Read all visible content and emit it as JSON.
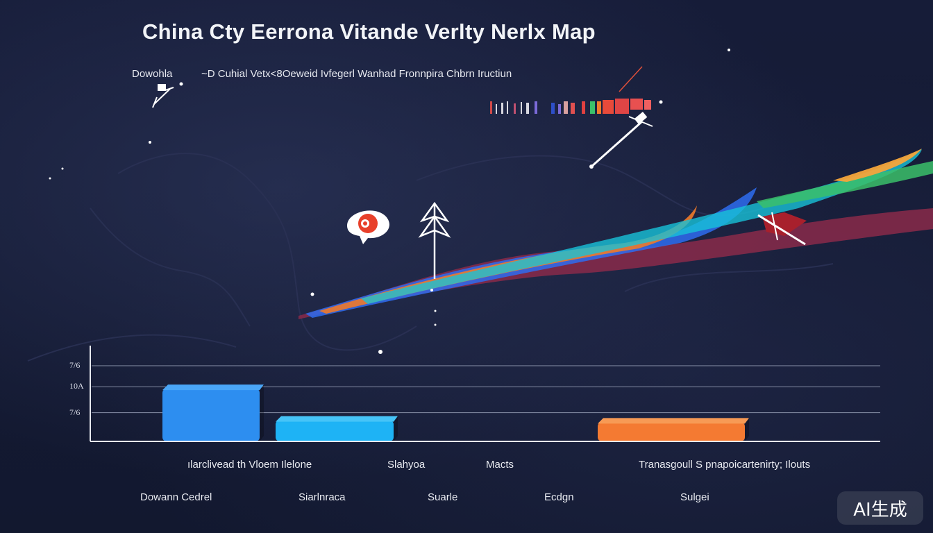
{
  "title": "China Cty Eerrona Vitande Verlty Nerlx Map",
  "subtitle_left": "Dowohla",
  "subtitle_right": "~D Cuhial  Vetx<8Oeweid  Ivfegerl Wanhad Fronnpira Chbrn Iructiun",
  "watermark": "AI生成",
  "colors": {
    "bar_blue_dark": "#2d8ef0",
    "bar_blue_light": "#1eb3f5",
    "bar_orange": "#f47a32",
    "axis": "#e8eaf0",
    "grid": "#8890a8",
    "ribbon": [
      "#7a3aa8",
      "#c0304a",
      "#2e6cf0",
      "#18c2d8",
      "#3bc06a",
      "#f07a2a"
    ]
  },
  "chart_data": {
    "type": "bar",
    "title": "China Cty Eerrona Vitande Verlty Nerlx Map",
    "categories": [
      "ılarclivead th Vloem Ilelone",
      "Slahyoa",
      "Macts",
      "Tranasgoull S pnapoicartenirty; Ilouts"
    ],
    "values": [
      0.55,
      0.22,
      0,
      0.2
    ],
    "ylim": [
      0,
      1
    ],
    "y_ticks": [
      "7/6",
      "10A",
      "7/6"
    ],
    "y_tick_values": [
      0.3,
      0.57,
      0.79
    ],
    "grid": true,
    "legend_labels": [
      "Dowann Cedrel",
      "Siarlnraca",
      "Suarle",
      "Ecdgn",
      "Sulgei"
    ]
  },
  "icons": {
    "satellite_top_left": "satellite-icon",
    "satellite_top_right": "satellite-icon",
    "badge": "map-pin-badge-icon",
    "tree": "tree-icon",
    "flag": "flag-icon"
  }
}
